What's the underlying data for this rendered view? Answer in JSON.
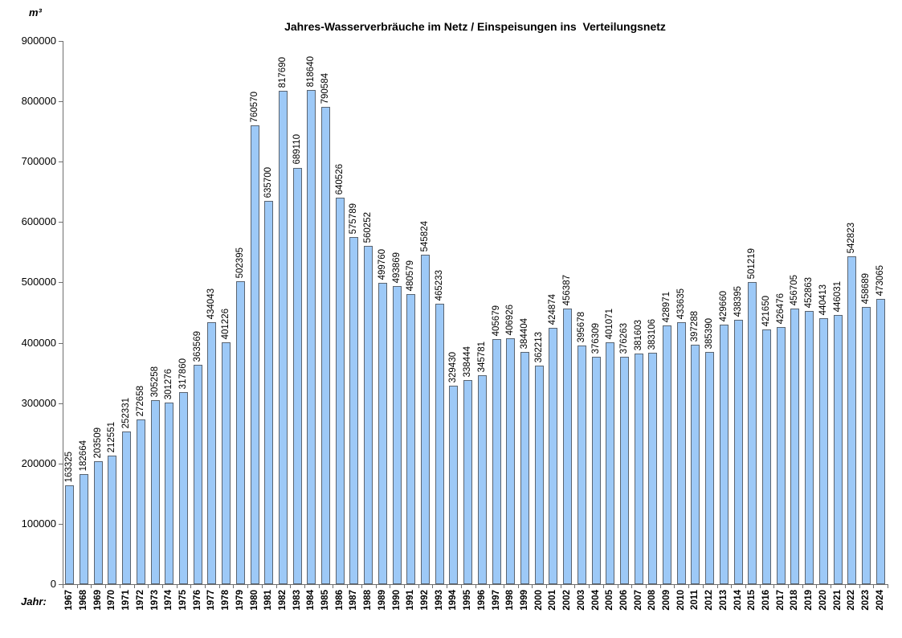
{
  "header": {
    "title": "Jahres-Wasserverbräuche im Netz / Einspeisungen ins  Verteilungsnetz",
    "unit_label": "m³"
  },
  "axis": {
    "x_label": "Jahr:"
  },
  "chart_data": {
    "type": "bar",
    "title": "Jahres-Wasserverbräuche im Netz / Einspeisungen ins  Verteilungsnetz",
    "unit": "m³",
    "xlabel": "Jahr:",
    "ylabel": "m³",
    "ylim": [
      0,
      900000
    ],
    "ytick_step": 100000,
    "grid": false,
    "legend": "none",
    "value_labels": "rotated-90-above-bars",
    "colors": {
      "bar_fill": "#9DC9F7",
      "bar_border": "#5A6470",
      "axis": "#6e6e6e",
      "text": "#000000"
    },
    "categories": [
      "1967",
      "1968",
      "1969",
      "1970",
      "1971",
      "1972",
      "1973",
      "1974",
      "1975",
      "1976",
      "1977",
      "1978",
      "1979",
      "1980",
      "1981",
      "1982",
      "1983",
      "1984",
      "1985",
      "1986",
      "1987",
      "1988",
      "1989",
      "1990",
      "1991",
      "1992",
      "1993",
      "1994",
      "1995",
      "1996",
      "1997",
      "1998",
      "1999",
      "2000",
      "2001",
      "2002",
      "2003",
      "2004",
      "2005",
      "2006",
      "2007",
      "2008",
      "2009",
      "2010",
      "2011",
      "2012",
      "2013",
      "2014",
      "2015",
      "2016",
      "2017",
      "2018",
      "2019",
      "2020",
      "2021",
      "2022",
      "2023",
      "2024"
    ],
    "values": [
      163325,
      182664,
      203509,
      212551,
      252331,
      272658,
      305258,
      301276,
      317860,
      363569,
      434043,
      401226,
      502395,
      760570,
      635700,
      817690,
      689110,
      818640,
      790584,
      640526,
      575789,
      560252,
      499760,
      493869,
      480579,
      545824,
      465233,
      329430,
      338444,
      345781,
      405679,
      406926,
      384404,
      362213,
      424874,
      456387,
      395678,
      376309,
      401071,
      376263,
      381603,
      383106,
      428971,
      433635,
      397288,
      385390,
      429660,
      438395,
      501219,
      421650,
      426476,
      456705,
      452863,
      440413,
      446031,
      542823,
      458689,
      473065
    ]
  }
}
